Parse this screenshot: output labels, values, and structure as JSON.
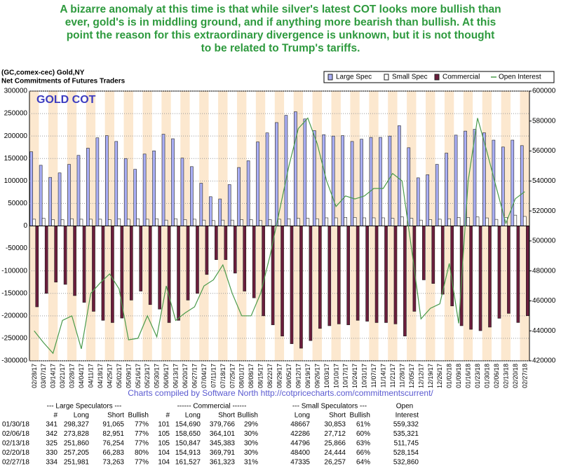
{
  "chart_data": {
    "type": "bar",
    "annotation": [
      "A bizarre anomaly at this time is that while silver's latest COT looks more bullish than",
      "ever, gold's is in middling ground, and if anything more bearish than bullish. At this",
      "point the reason for this extraordinary divergence is unknown, but it is not thought",
      "to be related to Trump's tariffs."
    ],
    "header": [
      "(GC,comex-cec) Gold,NY",
      "Net Commitments of Futures Traders"
    ],
    "title": "GOLD COT",
    "credit": "Charts compiled by Software North  http://cotpricecharts.com/commitmentscurrent/",
    "categories": [
      "02/28/17",
      "03/07/17",
      "03/14/17",
      "03/21/17",
      "03/28/17",
      "04/04/17",
      "04/11/17",
      "04/18/17",
      "04/25/17",
      "05/02/17",
      "05/09/17",
      "05/16/17",
      "05/23/17",
      "05/30/17",
      "06/06/17",
      "06/13/17",
      "06/20/17",
      "06/27/17",
      "07/04/17",
      "07/11/17",
      "07/18/17",
      "07/25/17",
      "08/01/17",
      "08/08/17",
      "08/15/17",
      "08/22/17",
      "08/29/17",
      "09/05/17",
      "09/12/17",
      "09/19/17",
      "09/26/17",
      "10/03/17",
      "10/10/17",
      "10/17/17",
      "10/24/17",
      "10/31/17",
      "11/07/17",
      "11/14/17",
      "11/21/17",
      "11/28/17",
      "12/05/17",
      "12/12/17",
      "12/19/17",
      "12/26/17",
      "01/02/18",
      "01/09/18",
      "01/16/18",
      "01/23/18",
      "01/30/18",
      "02/06/18",
      "02/13/18",
      "02/20/18",
      "02/27/18"
    ],
    "series": [
      {
        "name": "Large Spec",
        "color": "#a9aef5",
        "values": [
          165000,
          135000,
          108000,
          118000,
          137000,
          157000,
          173000,
          196000,
          201000,
          188000,
          150000,
          126000,
          160000,
          167000,
          204000,
          194000,
          151000,
          132000,
          95000,
          65000,
          60000,
          92000,
          130000,
          145000,
          187000,
          207000,
          230000,
          246000,
          254000,
          238000,
          212000,
          203000,
          200000,
          201000,
          188000,
          193000,
          197000,
          197000,
          200000,
          223000,
          174000,
          107000,
          114000,
          137000,
          162000,
          202000,
          211000,
          215000,
          207262,
          190877,
          175606,
          190922,
          178718
        ]
      },
      {
        "name": "Small Spec",
        "color": "#ffffff",
        "values": [
          15000,
          17000,
          14000,
          14000,
          16000,
          15000,
          15000,
          15000,
          14000,
          16000,
          15000,
          16000,
          15000,
          16000,
          13000,
          16000,
          14000,
          15000,
          13000,
          12000,
          13000,
          13000,
          14000,
          14000,
          12000,
          14000,
          15000,
          16000,
          17000,
          17000,
          16000,
          18000,
          18000,
          19000,
          19000,
          18000,
          18000,
          18000,
          17000,
          20000,
          17000,
          13000,
          14000,
          15000,
          16000,
          19000,
          19000,
          20000,
          17814,
          14574,
          18930,
          23956,
          21078
        ]
      },
      {
        "name": "Commercial",
        "color": "#6b1d3c",
        "values": [
          -180000,
          -150000,
          -125000,
          -130000,
          -155000,
          -170000,
          -190000,
          -210000,
          -215000,
          -205000,
          -165000,
          -145000,
          -175000,
          -185000,
          -215000,
          -210000,
          -165000,
          -150000,
          -108000,
          -75000,
          -75000,
          -105000,
          -145000,
          -160000,
          -200000,
          -220000,
          -245000,
          -262000,
          -272000,
          -255000,
          -228000,
          -222000,
          -218000,
          -220000,
          -210000,
          -212000,
          -215000,
          -215000,
          -218000,
          -245000,
          -190000,
          -120000,
          -128000,
          -152000,
          -178000,
          -222000,
          -230000,
          -233000,
          -225076,
          -205451,
          -194536,
          -214878,
          -199796
        ]
      },
      {
        "name": "Open Interest",
        "color": "#4a9a4a",
        "axis": "y2",
        "values": [
          440000,
          432000,
          425000,
          447000,
          450000,
          428000,
          465000,
          472000,
          478000,
          468000,
          434000,
          435000,
          450000,
          436000,
          470000,
          447000,
          452000,
          456000,
          470000,
          474000,
          484000,
          465000,
          450000,
          450000,
          465000,
          490000,
          520000,
          550000,
          575000,
          582000,
          565000,
          540000,
          523000,
          530000,
          528000,
          530000,
          535000,
          535000,
          545000,
          540000,
          495000,
          448000,
          455000,
          458000,
          485000,
          445000,
          540000,
          582000,
          559332,
          535321,
          511745,
          528154,
          532860
        ]
      }
    ],
    "ylim": [
      -300000,
      300000
    ],
    "yticks": [
      -300000,
      -250000,
      -200000,
      -150000,
      -100000,
      -50000,
      0,
      50000,
      100000,
      150000,
      200000,
      250000,
      300000
    ],
    "y2lim": [
      420000,
      600000
    ],
    "y2ticks": [
      420000,
      440000,
      460000,
      480000,
      500000,
      520000,
      540000,
      560000,
      580000,
      600000
    ],
    "grid": true
  },
  "table": {
    "group_headers": [
      "--- Large Speculators ---",
      "------ Commercial ------",
      "--- Small Speculators ---",
      "Open"
    ],
    "column_headers": [
      "#",
      "Long",
      "Short",
      "Bullish",
      "#",
      "Long",
      "Short",
      "Bullish",
      "Long",
      "Short",
      "Bullish",
      "Interest"
    ],
    "rows": [
      [
        "01/30/18",
        "341",
        "298,327",
        "91,065",
        "77%",
        "101",
        "154,690",
        "379,766",
        "29%",
        "48667",
        "30,853",
        "61%",
        "559,332"
      ],
      [
        "02/06/18",
        "342",
        "273,828",
        "82,951",
        "77%",
        "105",
        "158,650",
        "364,101",
        "30%",
        "42286",
        "27,712",
        "60%",
        "535,321"
      ],
      [
        "02/13/18",
        "325",
        "251,860",
        "76,254",
        "77%",
        "105",
        "150,847",
        "345,383",
        "30%",
        "44796",
        "25,866",
        "63%",
        "511,745"
      ],
      [
        "02/20/18",
        "330",
        "257,205",
        "66,283",
        "80%",
        "104",
        "154,913",
        "369,791",
        "30%",
        "48400",
        "24,444",
        "66%",
        "528,154"
      ],
      [
        "02/27/18",
        "334",
        "251,981",
        "73,263",
        "77%",
        "104",
        "161,527",
        "361,323",
        "31%",
        "47335",
        "26,257",
        "64%",
        "532,860"
      ]
    ]
  }
}
